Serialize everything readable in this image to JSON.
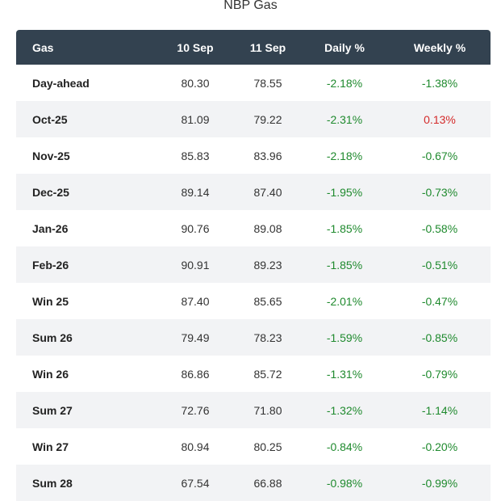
{
  "title": "NBP Gas",
  "columns": [
    "Gas",
    "10 Sep",
    "11 Sep",
    "Daily %",
    "Weekly %"
  ],
  "colors": {
    "header_bg": "#334250",
    "negative": "#1f8a2e",
    "positive": "#d42a2a",
    "alt_row": "#f2f3f5"
  },
  "rows": [
    {
      "name": "Day-ahead",
      "d10": "80.30",
      "d11": "78.55",
      "daily": "-2.18%",
      "weekly": "-1.38%"
    },
    {
      "name": "Oct-25",
      "d10": "81.09",
      "d11": "79.22",
      "daily": "-2.31%",
      "weekly": "0.13%"
    },
    {
      "name": "Nov-25",
      "d10": "85.83",
      "d11": "83.96",
      "daily": "-2.18%",
      "weekly": "-0.67%"
    },
    {
      "name": "Dec-25",
      "d10": "89.14",
      "d11": "87.40",
      "daily": "-1.95%",
      "weekly": "-0.73%"
    },
    {
      "name": "Jan-26",
      "d10": "90.76",
      "d11": "89.08",
      "daily": "-1.85%",
      "weekly": "-0.58%"
    },
    {
      "name": "Feb-26",
      "d10": "90.91",
      "d11": "89.23",
      "daily": "-1.85%",
      "weekly": "-0.51%"
    },
    {
      "name": "Win 25",
      "d10": "87.40",
      "d11": "85.65",
      "daily": "-2.01%",
      "weekly": "-0.47%"
    },
    {
      "name": "Sum 26",
      "d10": "79.49",
      "d11": "78.23",
      "daily": "-1.59%",
      "weekly": "-0.85%"
    },
    {
      "name": "Win 26",
      "d10": "86.86",
      "d11": "85.72",
      "daily": "-1.31%",
      "weekly": "-0.79%"
    },
    {
      "name": "Sum 27",
      "d10": "72.76",
      "d11": "71.80",
      "daily": "-1.32%",
      "weekly": "-1.14%"
    },
    {
      "name": "Win 27",
      "d10": "80.94",
      "d11": "80.25",
      "daily": "-0.84%",
      "weekly": "-0.20%"
    },
    {
      "name": "Sum 28",
      "d10": "67.54",
      "d11": "66.88",
      "daily": "-0.98%",
      "weekly": "-0.99%"
    }
  ]
}
